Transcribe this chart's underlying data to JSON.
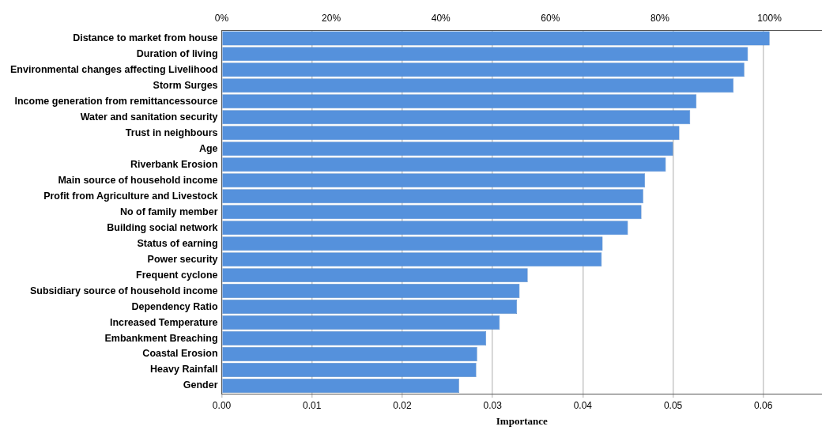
{
  "chart_data": {
    "type": "bar",
    "orientation": "horizontal",
    "xlabel": "Importance",
    "categories": [
      "Distance to market from house",
      "Duration of living",
      "Environmental changes affecting Livelihood",
      "Storm Surges",
      "Income generation from remittancessource",
      "Water and sanitation security",
      "Trust in neighbours",
      "Age",
      "Riverbank Erosion",
      "Main source of household income",
      "Profit from Agriculture and Livestock",
      "No of family member",
      "Building social network",
      "Status of earning",
      "Power security",
      "Frequent cyclone",
      "Subsidiary source of household income",
      "Dependency Ratio",
      "Increased Temperature",
      "Embankment Breaching",
      "Coastal Erosion",
      "Heavy Rainfall",
      "Gender"
    ],
    "values": [
      0.0607,
      0.0583,
      0.0579,
      0.0567,
      0.0526,
      0.0519,
      0.0507,
      0.05,
      0.0492,
      0.0469,
      0.0467,
      0.0465,
      0.045,
      0.0422,
      0.0421,
      0.0339,
      0.033,
      0.0327,
      0.0308,
      0.0293,
      0.0283,
      0.0282,
      0.0263
    ],
    "color": "#5591dc",
    "xlim": [
      0,
      0.0665
    ],
    "xticks": [
      {
        "value": 0,
        "label": "0.00"
      },
      {
        "value": 0.01,
        "label": "0.01"
      },
      {
        "value": 0.02,
        "label": "0.02"
      },
      {
        "value": 0.03,
        "label": "0.03"
      },
      {
        "value": 0.04,
        "label": "0.04"
      },
      {
        "value": 0.05,
        "label": "0.05"
      },
      {
        "value": 0.06,
        "label": "0.06"
      }
    ],
    "x2lim": [
      0,
      109.6
    ],
    "x2ticks": [
      {
        "value": 0,
        "label": "0%"
      },
      {
        "value": 20,
        "label": "20%"
      },
      {
        "value": 40,
        "label": "40%"
      },
      {
        "value": 60,
        "label": "60%"
      },
      {
        "value": 80,
        "label": "80%"
      },
      {
        "value": 100,
        "label": "100%"
      }
    ],
    "grid": "x",
    "legend": false
  }
}
